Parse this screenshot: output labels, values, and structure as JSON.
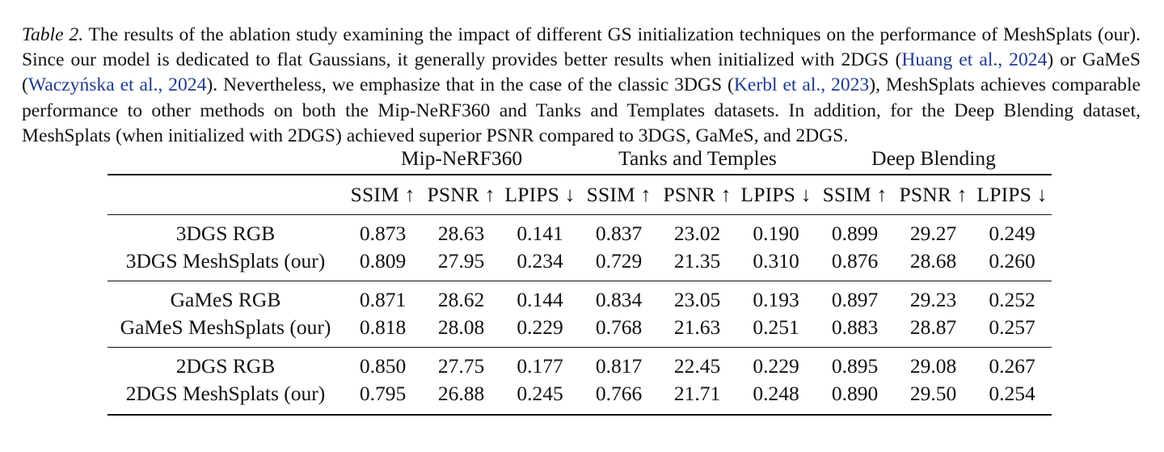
{
  "caption": {
    "label": "Table 2.",
    "seg1": " The results of the ablation study examining the impact of different GS initialization techniques on the performance of MeshSplats (our). Since our model is dedicated to flat Gaussians, it generally provides better results when initialized with 2DGS (",
    "cite1": "Huang et al., 2024",
    "seg2": ") or GaMeS (",
    "cite2": "Waczyńska et al., 2024",
    "seg3": "). Nevertheless, we emphasize that in the case of the classic 3DGS (",
    "cite3": "Kerbl et al., 2023",
    "seg4": "), MeshSplats achieves comparable performance to other methods on both the Mip-NeRF360 and Tanks and Templates datasets. In addition, for the Deep Blending dataset, MeshSplats (when initialized with 2DGS) achieved superior PSNR compared to 3DGS, GaMeS, and 2DGS."
  },
  "table": {
    "groups": [
      "Mip-NeRF360",
      "Tanks and Temples",
      "Deep Blending"
    ],
    "metrics": [
      "SSIM ↑",
      "PSNR ↑",
      "LPIPS ↓",
      "SSIM ↑",
      "PSNR ↑",
      "LPIPS ↓",
      "SSIM ↑",
      "PSNR ↑",
      "LPIPS ↓"
    ],
    "rows": [
      {
        "method": "3DGS RGB",
        "values": [
          "0.873",
          "28.63",
          "0.141",
          "0.837",
          "23.02",
          "0.190",
          "0.899",
          "29.27",
          "0.249"
        ]
      },
      {
        "method": "3DGS MeshSplats (our)",
        "values": [
          "0.809",
          "27.95",
          "0.234",
          "0.729",
          "21.35",
          "0.310",
          "0.876",
          "28.68",
          "0.260"
        ]
      },
      {
        "method": "GaMeS RGB",
        "values": [
          "0.871",
          "28.62",
          "0.144",
          "0.834",
          "23.05",
          "0.193",
          "0.897",
          "29.23",
          "0.252"
        ]
      },
      {
        "method": "GaMeS MeshSplats (our)",
        "values": [
          "0.818",
          "28.08",
          "0.229",
          "0.768",
          "21.63",
          "0.251",
          "0.883",
          "28.87",
          "0.257"
        ]
      },
      {
        "method": "2DGS RGB",
        "values": [
          "0.850",
          "27.75",
          "0.177",
          "0.817",
          "22.45",
          "0.229",
          "0.895",
          "29.08",
          "0.267"
        ]
      },
      {
        "method": "2DGS MeshSplats (our)",
        "values": [
          "0.795",
          "26.88",
          "0.245",
          "0.766",
          "21.71",
          "0.248",
          "0.890",
          "29.50",
          "0.254"
        ]
      }
    ]
  }
}
